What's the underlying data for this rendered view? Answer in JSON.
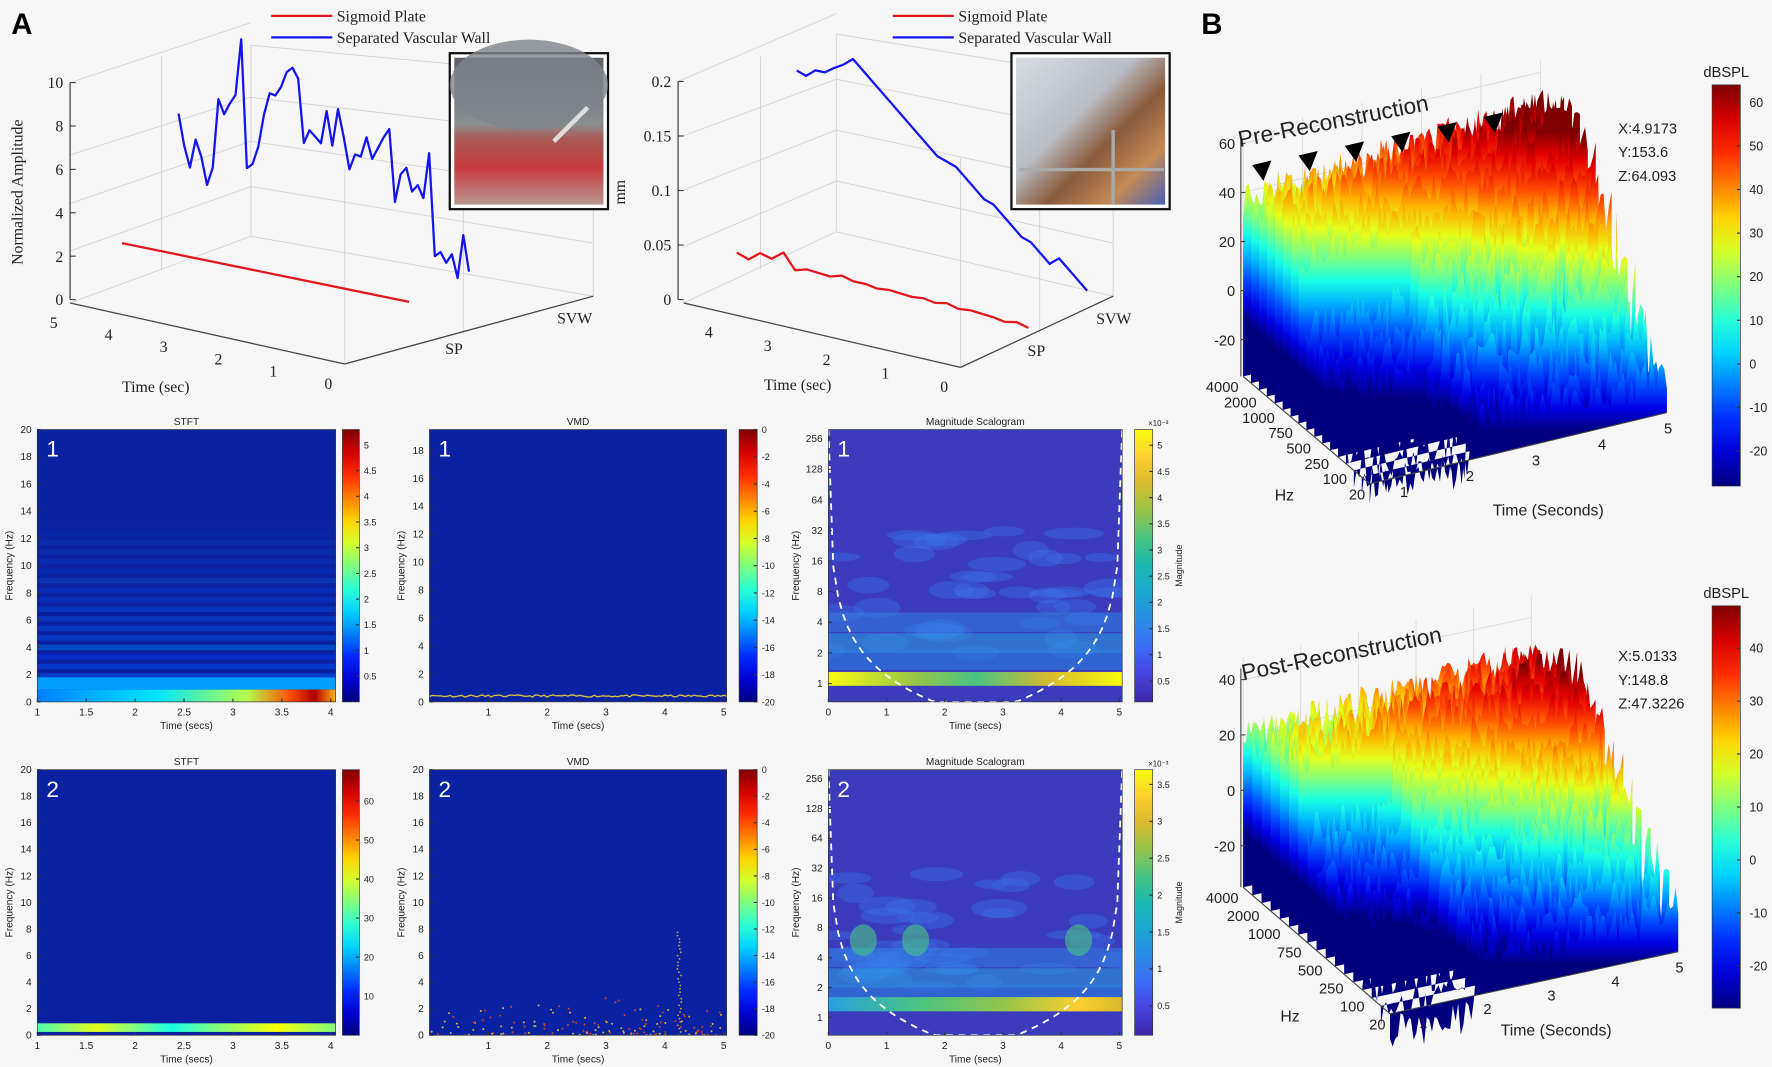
{
  "figure": {
    "panel_labels": {
      "a": "A",
      "b": "B"
    }
  },
  "chart_data": [
    {
      "id": "a_amplitude",
      "type": "line3d",
      "zlabel": "Normalized Amplitude",
      "xlabel": "Time (sec)",
      "zlim": [
        0,
        10
      ],
      "z_ticks": [
        "0",
        "2",
        "4",
        "6",
        "8",
        "10"
      ],
      "x_ticks": [
        "5",
        "4",
        "3",
        "2",
        "1",
        "0"
      ],
      "depth_ticks": [
        "SP",
        "SVW"
      ],
      "legend": [
        "Sigmoid Plate",
        "Separated Vascular Wall"
      ],
      "series": [
        {
          "name": "Sigmoid Plate",
          "color": "#e3161d",
          "values": [
            0.05,
            0.05,
            0.05,
            0.05,
            0.05,
            0.05
          ]
        },
        {
          "name": "Separated Vascular Wall",
          "color": "#1414ee",
          "values": [
            8.5,
            7.0,
            6.0,
            7.3,
            6.5,
            5.2,
            6.0,
            9.2,
            8.5,
            9.0,
            9.4,
            12.0,
            6.0,
            6.2,
            7.0,
            8.5,
            9.5,
            9.4,
            9.8,
            10.5,
            10.7,
            10.2,
            7.2,
            7.8,
            7.5,
            7.2,
            8.7,
            7.1,
            8.8,
            7.5,
            6.0,
            6.7,
            6.6,
            7.5,
            6.5,
            7.0,
            7.5,
            7.9,
            4.5,
            5.8,
            6.1,
            5.0,
            5.3,
            4.7,
            6.8,
            2.0,
            2.2,
            1.7,
            2.1,
            1.0,
            3.0,
            1.3
          ]
        }
      ]
    },
    {
      "id": "a_displacement",
      "type": "line3d",
      "zlabel": "mm",
      "xlabel": "Time (sec)",
      "zlim": [
        0,
        0.2
      ],
      "z_ticks": [
        "0",
        "0.05",
        "0.1",
        "0.15",
        "0.2"
      ],
      "x_ticks": [
        "4",
        "3",
        "2",
        "1",
        "0"
      ],
      "depth_ticks": [
        "SP",
        "SVW"
      ],
      "legend": [
        "Sigmoid Plate",
        "Separated Vascular Wall"
      ],
      "series": [
        {
          "name": "Sigmoid Plate",
          "color": "#e3161d",
          "values": [
            0.04,
            0.035,
            0.042,
            0.038,
            0.045,
            0.03,
            0.032,
            0.03,
            0.028,
            0.03,
            0.026,
            0.025,
            0.022,
            0.022,
            0.02,
            0.018,
            0.018,
            0.015,
            0.016,
            0.012,
            0.012,
            0.01,
            0.008,
            0.005,
            0.006,
            0.002
          ]
        },
        {
          "name": "Separated Vascular Wall",
          "color": "#1414ee",
          "values": [
            0.21,
            0.205,
            0.21,
            0.208,
            0.212,
            0.215,
            0.22,
            0.21,
            0.2,
            0.19,
            0.18,
            0.17,
            0.16,
            0.15,
            0.14,
            0.13,
            0.125,
            0.12,
            0.11,
            0.1,
            0.09,
            0.085,
            0.075,
            0.065,
            0.055,
            0.05,
            0.04,
            0.03,
            0.035,
            0.025,
            0.015,
            0.005
          ]
        }
      ]
    },
    {
      "id": "stft_1",
      "type": "heatmap",
      "title": "STFT",
      "panel_number": "1",
      "xlabel": "Time (secs)",
      "ylabel": "Frequency (Hz)",
      "xlim": [
        1,
        4.05
      ],
      "ylim": [
        0,
        20
      ],
      "x_ticks": [
        1,
        1.5,
        2,
        2.5,
        3,
        3.5,
        4
      ],
      "y_ticks": [
        0,
        2,
        4,
        6,
        8,
        10,
        12,
        14,
        16,
        18,
        20
      ],
      "colormap": "jet",
      "clim": [
        0,
        5.3
      ],
      "colorbar_ticks": [
        0.5,
        1,
        1.5,
        2,
        2.5,
        3,
        3.5,
        4,
        4.5,
        5
      ]
    },
    {
      "id": "vmd_1",
      "type": "heatmap",
      "title": "VMD",
      "panel_number": "1",
      "xlabel": "Time (secs)",
      "ylabel": "Frequency (Hz)",
      "xlim": [
        0,
        5.05
      ],
      "ylim": [
        0,
        19.5
      ],
      "x_ticks": [
        1,
        2,
        3,
        4,
        5
      ],
      "y_ticks": [
        0,
        2,
        4,
        6,
        8,
        10,
        12,
        14,
        16,
        18
      ],
      "colormap": "jet",
      "clim": [
        -20,
        0
      ],
      "colorbar_ticks": [
        0,
        -2,
        -4,
        -6,
        -8,
        -10,
        -12,
        -14,
        -16,
        -18,
        -20
      ]
    },
    {
      "id": "scalogram_1",
      "type": "heatmap",
      "title": "Magnitude Scalogram",
      "panel_number": "1",
      "xlabel": "Time (secs)",
      "ylabel": "Frequency (Hz)",
      "xlim": [
        0,
        5.05
      ],
      "ylim": [
        0.66,
        315
      ],
      "yscale": "log2",
      "x_ticks": [
        0,
        1,
        2,
        3,
        4,
        5
      ],
      "y_ticks": [
        1,
        2,
        4,
        8,
        16,
        32,
        64,
        128,
        256
      ],
      "colormap": "parula",
      "clim": [
        0.1,
        5.3
      ],
      "colorbar_ticks": [
        0.5,
        1,
        1.5,
        2,
        2.5,
        3,
        3.5,
        4,
        4.5,
        5
      ],
      "colorbar_exponent": "×10⁻³",
      "colorbar_label": "Magnitude"
    },
    {
      "id": "stft_2",
      "type": "heatmap",
      "title": "STFT",
      "panel_number": "2",
      "xlabel": "Time (secs)",
      "ylabel": "Frequency (Hz)",
      "xlim": [
        1,
        4.05
      ],
      "ylim": [
        0,
        20
      ],
      "x_ticks": [
        1,
        1.5,
        2,
        2.5,
        3,
        3.5,
        4
      ],
      "y_ticks": [
        0,
        2,
        4,
        6,
        8,
        10,
        12,
        14,
        16,
        18,
        20
      ],
      "colormap": "jet",
      "clim": [
        0,
        68
      ],
      "colorbar_ticks": [
        10,
        20,
        30,
        40,
        50,
        60
      ]
    },
    {
      "id": "vmd_2",
      "type": "heatmap",
      "title": "VMD",
      "panel_number": "2",
      "xlabel": "Time (secs)",
      "ylabel": "Frequency (Hz)",
      "xlim": [
        0,
        5.05
      ],
      "ylim": [
        0,
        20
      ],
      "x_ticks": [
        1,
        2,
        3,
        4,
        5
      ],
      "y_ticks": [
        0,
        2,
        4,
        6,
        8,
        10,
        12,
        14,
        16,
        18,
        20
      ],
      "colormap": "jet",
      "clim": [
        -20,
        0
      ],
      "colorbar_ticks": [
        0,
        -2,
        -4,
        -6,
        -8,
        -10,
        -12,
        -14,
        -16,
        -18,
        -20
      ]
    },
    {
      "id": "scalogram_2",
      "type": "heatmap",
      "title": "Magnitude Scalogram",
      "panel_number": "2",
      "xlabel": "Time (secs)",
      "ylabel": "Frequency (Hz)",
      "xlim": [
        0,
        5.05
      ],
      "ylim": [
        0.66,
        315
      ],
      "yscale": "log2",
      "x_ticks": [
        0,
        1,
        2,
        3,
        4,
        5
      ],
      "y_ticks": [
        1,
        2,
        4,
        8,
        16,
        32,
        64,
        128,
        256
      ],
      "colormap": "parula",
      "clim": [
        0.1,
        3.7
      ],
      "colorbar_ticks": [
        0.5,
        1,
        1.5,
        2,
        2.5,
        3,
        3.5
      ],
      "colorbar_exponent": "×10⁻³",
      "colorbar_label": "Magnitude"
    },
    {
      "id": "pre_reconstruction",
      "type": "surface",
      "title": "Pre-Reconstruction",
      "zlim": [
        -35,
        65
      ],
      "z_ticks": [
        60,
        40,
        20,
        0,
        -20
      ],
      "hz_ticks": [
        "4000",
        "2000",
        "1000",
        "750",
        "500",
        "250",
        "100",
        "20"
      ],
      "time_ticks": [
        1,
        2,
        3,
        4,
        5
      ],
      "xlabel": "Time (Seconds)",
      "ylabel": "Hz",
      "colorbar_title": "dBSPL",
      "clim": [
        -28,
        64
      ],
      "colorbar_ticks": [
        60,
        50,
        40,
        30,
        20,
        10,
        0,
        -10,
        -20
      ],
      "datatip": [
        "X:4.9173",
        "Y:153.6",
        "Z:64.093"
      ],
      "arrowhead_markers": 6
    },
    {
      "id": "post_reconstruction",
      "type": "surface",
      "title": "Post-Reconstruction",
      "zlim": [
        -35,
        48
      ],
      "z_ticks": [
        40,
        20,
        0,
        -20
      ],
      "hz_ticks": [
        "4000",
        "2000",
        "1000",
        "750",
        "500",
        "250",
        "100",
        "20"
      ],
      "time_ticks": [
        1,
        2,
        3,
        4,
        5
      ],
      "xlabel": "Time (Seconds)",
      "ylabel": "Hz",
      "colorbar_title": "dBSPL",
      "clim": [
        -28,
        48
      ],
      "colorbar_ticks": [
        40,
        30,
        20,
        10,
        0,
        -10,
        -20
      ],
      "datatip": [
        "X:5.0133",
        "Y:148.8",
        "Z:47.3226"
      ],
      "arrowhead_markers": 0
    }
  ]
}
